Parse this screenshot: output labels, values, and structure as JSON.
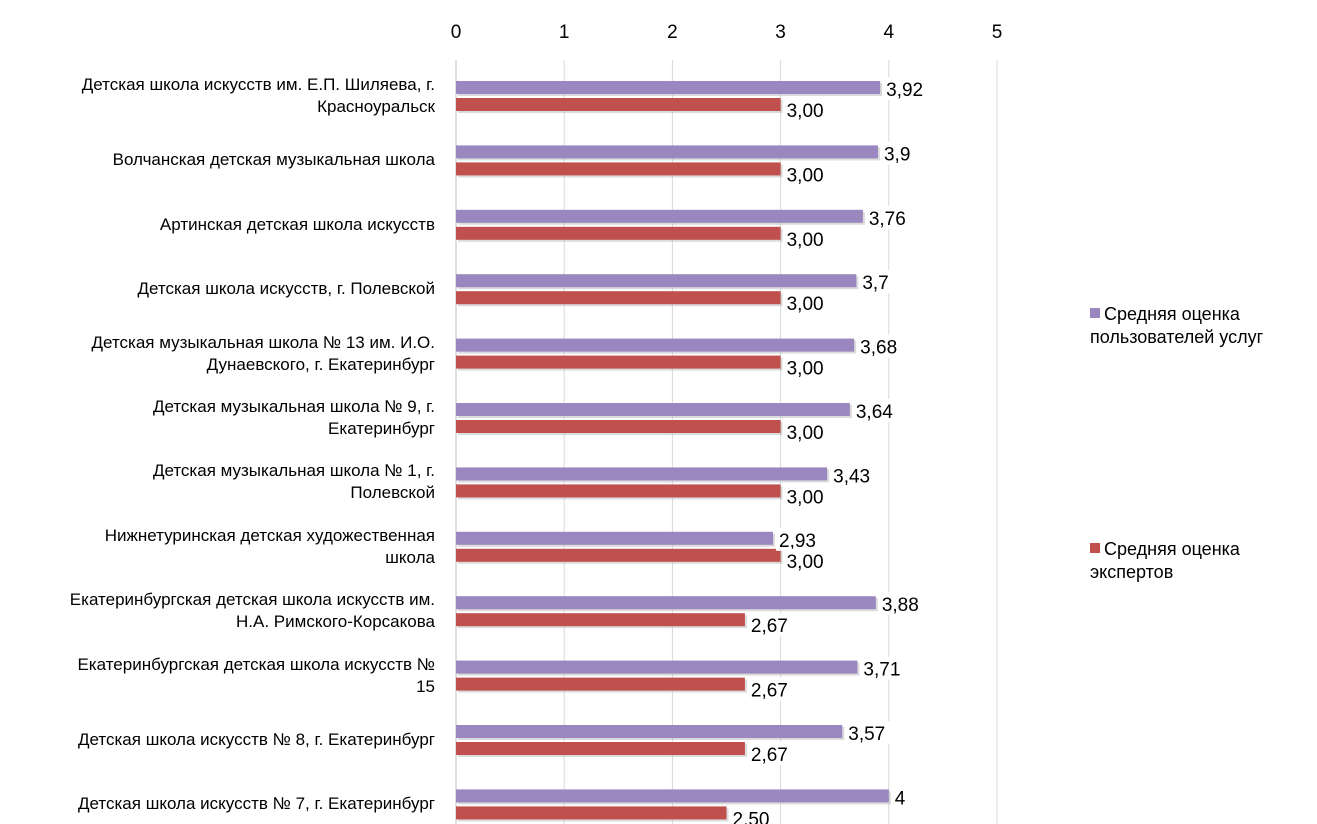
{
  "chart_data": {
    "type": "bar",
    "orientation": "horizontal",
    "x_axis_position": "top",
    "xlim": [
      0,
      5
    ],
    "x_ticks": [
      "0",
      "1",
      "2",
      "3",
      "4",
      "5"
    ],
    "grid": true,
    "legend_position": "right",
    "categories": [
      "Детская школа искусств им. Е.П. Шиляева, г. Красноуральск",
      "Волчанская детская музыкальная школа",
      "Артинская детская школа искусств",
      "Детская школа искусств, г. Полевской",
      "Детская музыкальная школа № 13 им. И.О. Дунаевского, г. Екатеринбург",
      "Детская музыкальная школа № 9, г. Екатеринбург",
      "Детская музыкальная школа № 1, г. Полевской",
      "Нижнетуринская детская художественная школа",
      "Екатеринбургская детская школа искусств им. Н.А. Римского-Корсакова",
      "Екатеринбургская детская школа искусств № 15",
      "Детская школа искусств № 8, г. Екатеринбург",
      "Детская школа искусств № 7, г. Екатеринбург"
    ],
    "category_label_lines": [
      [
        "Детская школа искусств им. Е.П. Шиляева, г.",
        "Красноуральск"
      ],
      [
        "Волчанская детская музыкальная школа"
      ],
      [
        "Артинская детская школа искусств"
      ],
      [
        "Детская школа искусств, г. Полевской"
      ],
      [
        "Детская музыкальная школа № 13 им. И.О.",
        "Дунаевского, г. Екатеринбург"
      ],
      [
        "Детская музыкальная школа № 9, г.",
        "Екатеринбург"
      ],
      [
        "Детская музыкальная школа № 1, г.",
        "Полевской"
      ],
      [
        "Нижнетуринская детская художественная",
        "школа"
      ],
      [
        "Екатеринбургская детская школа искусств им.",
        "Н.А. Римского-Корсакова"
      ],
      [
        "Екатеринбургская детская школа искусств №",
        "15"
      ],
      [
        "Детская школа искусств № 8, г. Екатеринбург"
      ],
      [
        "Детская школа искусств № 7, г. Екатеринбург"
      ]
    ],
    "series": [
      {
        "name": "Средняя оценка пользователей услуг",
        "legend_lines": [
          "Средняя оценка",
          "пользователей услуг"
        ],
        "color": "#9b87bf",
        "values": [
          3.92,
          3.9,
          3.76,
          3.7,
          3.68,
          3.64,
          3.43,
          2.93,
          3.88,
          3.71,
          3.57,
          4
        ],
        "labels": [
          "3,92",
          "3,9",
          "3,76",
          "3,7",
          "3,68",
          "3,64",
          "3,43",
          "2,93",
          "3,88",
          "3,71",
          "3,57",
          "4"
        ]
      },
      {
        "name": "Средняя оценка экспертов",
        "legend_lines": [
          "Средняя оценка",
          "экспертов"
        ],
        "color": "#c0504d",
        "values": [
          3.0,
          3.0,
          3.0,
          3.0,
          3.0,
          3.0,
          3.0,
          3.0,
          2.67,
          2.67,
          2.67,
          2.5
        ],
        "labels": [
          "3,00",
          "3,00",
          "3,00",
          "3,00",
          "3,00",
          "3,00",
          "3,00",
          "3,00",
          "2,67",
          "2,67",
          "2,67",
          "2,50"
        ]
      }
    ]
  }
}
